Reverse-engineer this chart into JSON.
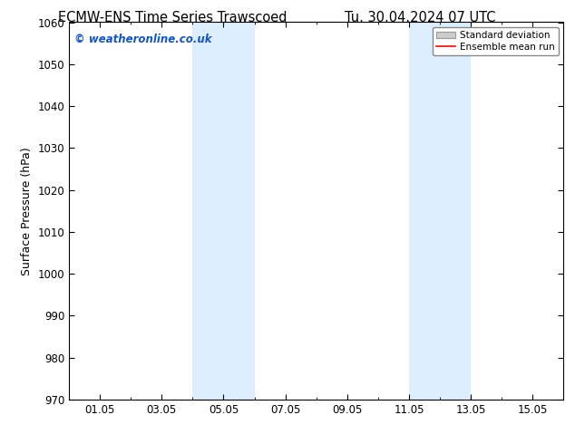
{
  "title_left": "ECMW-ENS Time Series Trawscoed",
  "title_right": "Tu. 30.04.2024 07 UTC",
  "ylabel": "Surface Pressure (hPa)",
  "ylim": [
    970,
    1060
  ],
  "yticks": [
    970,
    980,
    990,
    1000,
    1010,
    1020,
    1030,
    1040,
    1050,
    1060
  ],
  "xtick_labels": [
    "01.05",
    "03.05",
    "05.05",
    "07.05",
    "09.05",
    "11.05",
    "13.05",
    "15.05"
  ],
  "xtick_positions": [
    1,
    3,
    5,
    7,
    9,
    11,
    13,
    15
  ],
  "xlim": [
    0,
    16
  ],
  "shaded_bands": [
    {
      "x_start": 4.0,
      "x_end": 6.0
    },
    {
      "x_start": 11.0,
      "x_end": 13.0
    }
  ],
  "shade_color": "#ddeeff",
  "watermark_text": "© weatheronline.co.uk",
  "watermark_color": "#1155cc",
  "legend_items": [
    {
      "label": "Standard deviation",
      "type": "patch",
      "color": "#cccccc"
    },
    {
      "label": "Ensemble mean run",
      "type": "line",
      "color": "#ff0000"
    }
  ],
  "background_color": "#ffffff",
  "tick_color": "#000000",
  "font_color": "#000000",
  "title_fontsize": 10.5,
  "axis_label_fontsize": 9,
  "tick_fontsize": 8.5,
  "watermark_fontsize": 8.5,
  "legend_fontsize": 7.5
}
